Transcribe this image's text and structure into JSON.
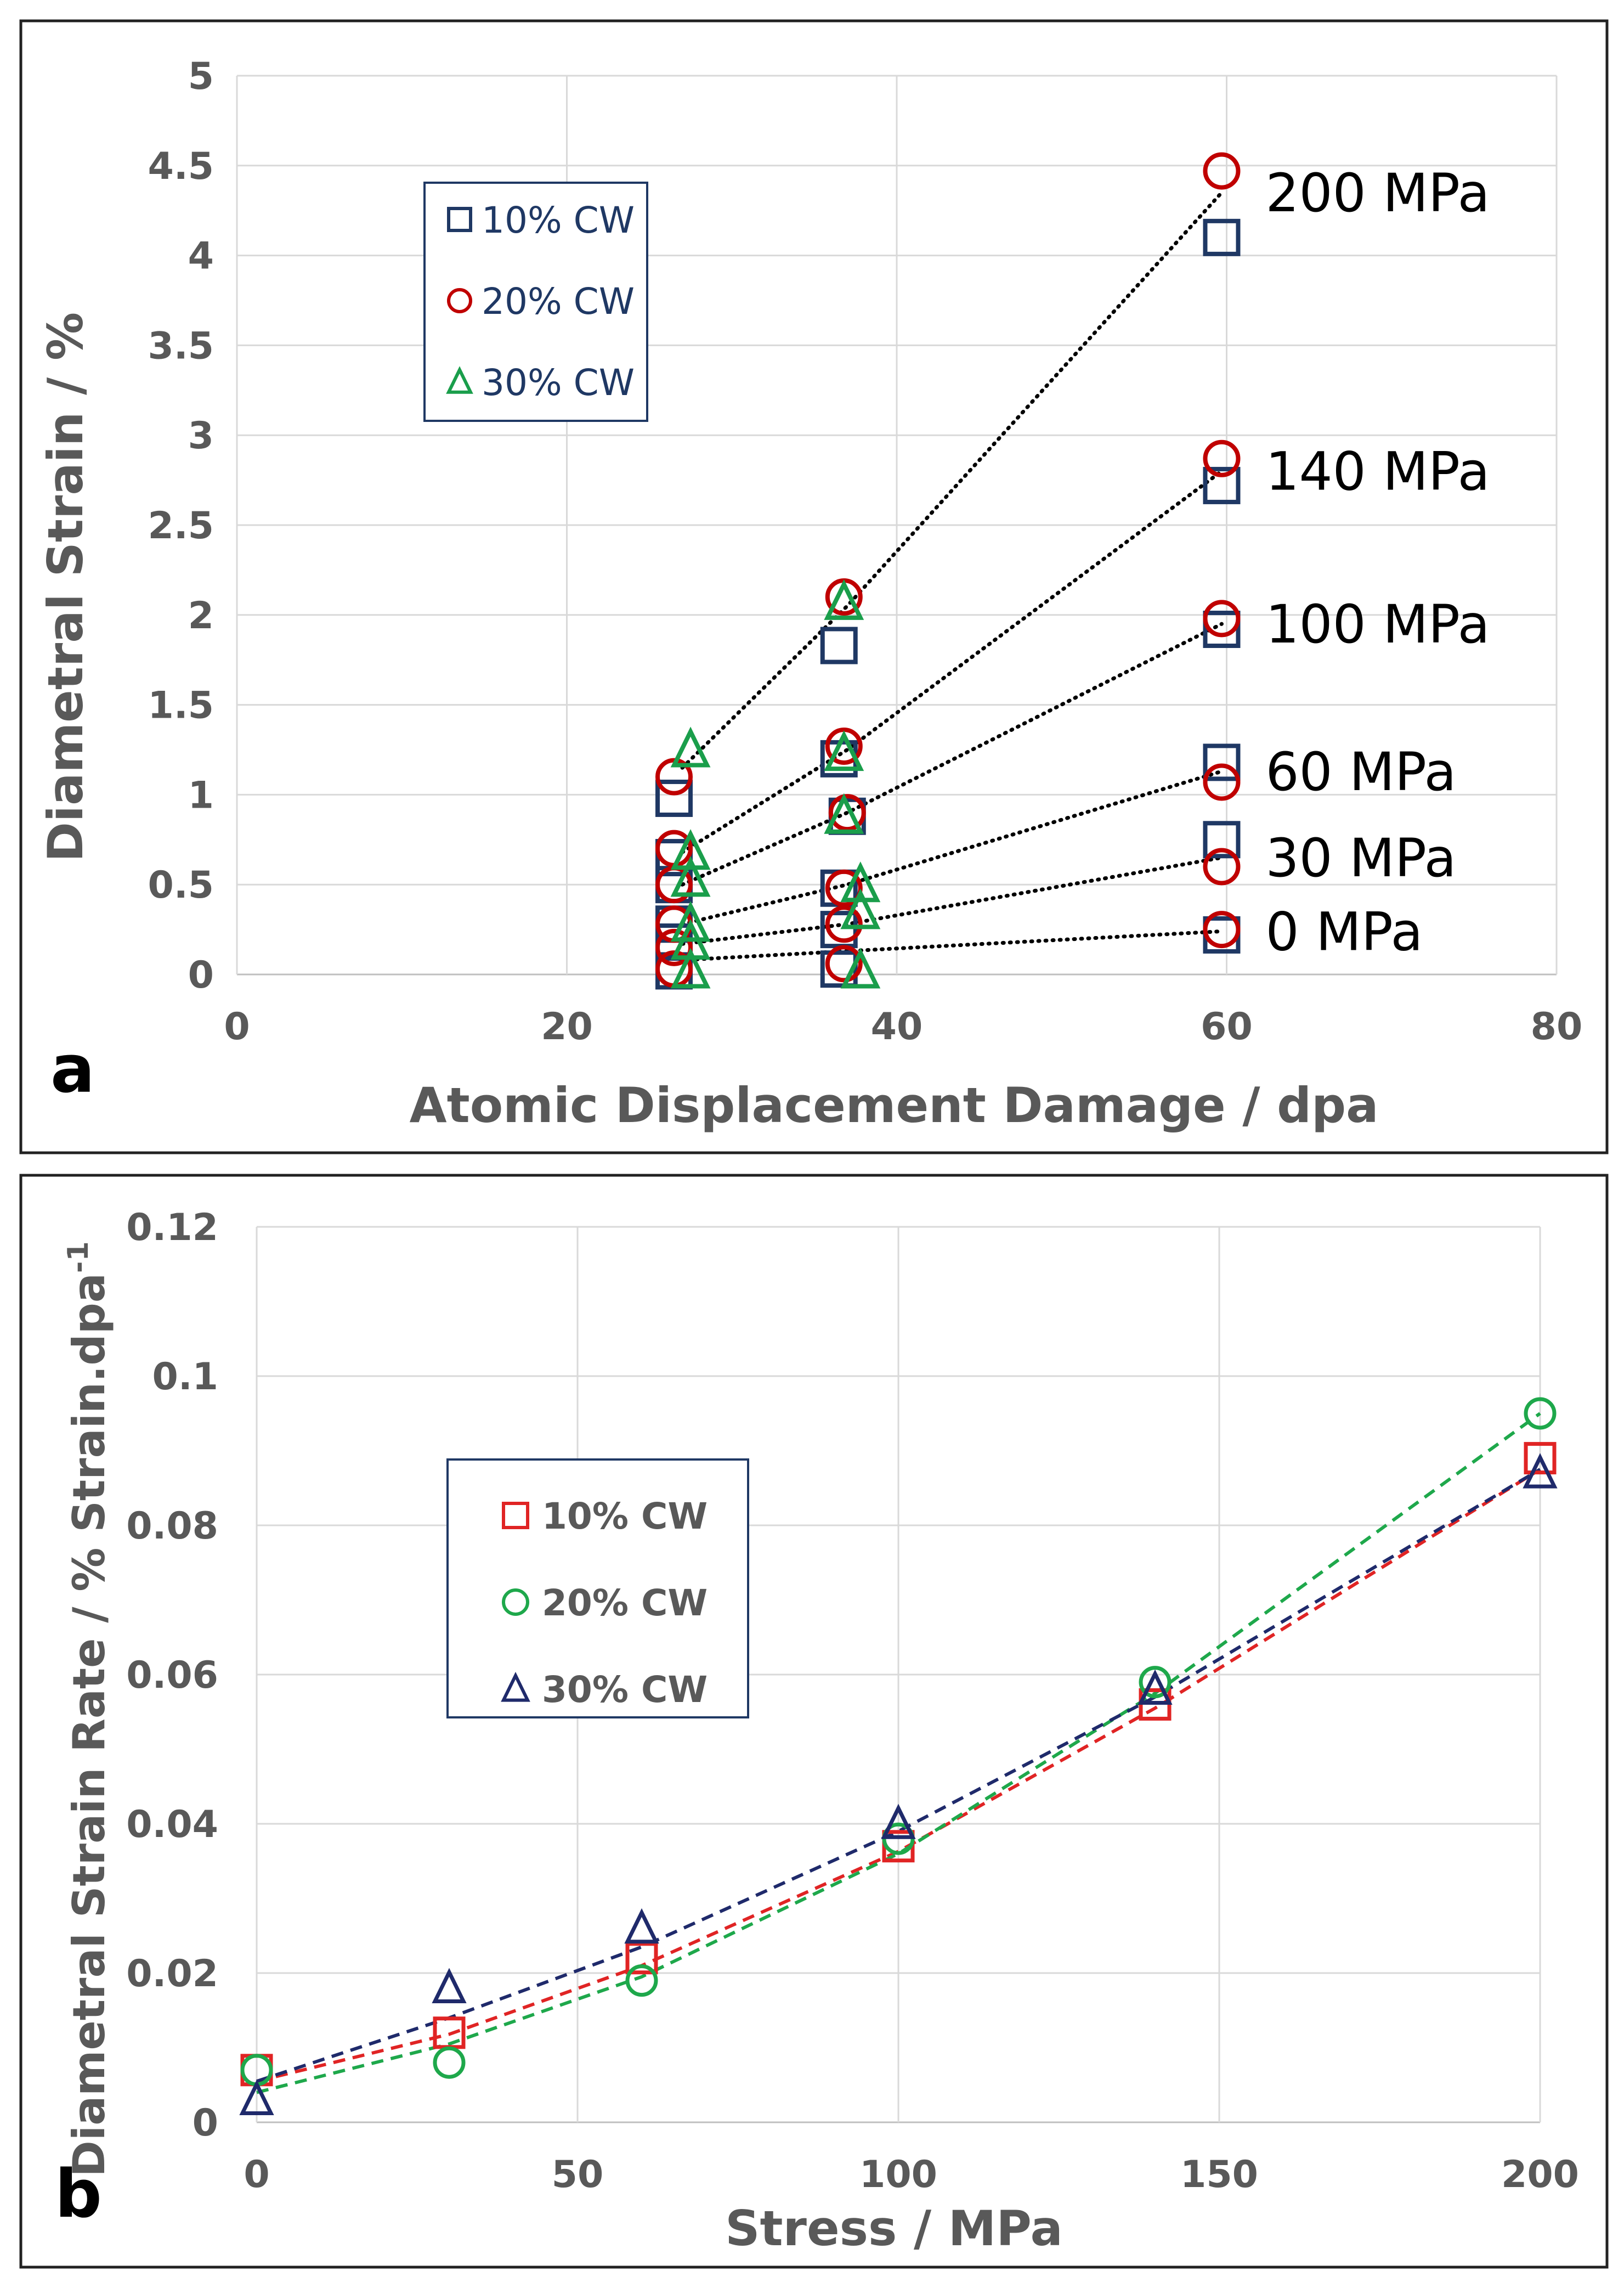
{
  "chart_data": [
    {
      "id": "a",
      "type": "scatter",
      "panel_label": "a",
      "xlabel": "Atomic Displacement Damage / dpa",
      "ylabel": "Diametral Strain / %",
      "xlim": [
        0,
        80
      ],
      "ylim": [
        0,
        5
      ],
      "xticks": [
        "0",
        "20",
        "40",
        "60",
        "80"
      ],
      "yticks": [
        "0",
        "0.5",
        "1",
        "1.5",
        "2",
        "2.5",
        "3",
        "3.5",
        "4",
        "4.5",
        "5"
      ],
      "grid": true,
      "legend_position": "top-left",
      "series": [
        {
          "name": "10% CW",
          "marker": "square",
          "color": "#1f3864",
          "points": [
            [
              26.5,
              0.98
            ],
            [
              26.5,
              0.65
            ],
            [
              26.5,
              0.5
            ],
            [
              26.5,
              0.28
            ],
            [
              26.5,
              0.18
            ],
            [
              26.5,
              0.02
            ],
            [
              36.5,
              1.83
            ],
            [
              36.5,
              1.2
            ],
            [
              37,
              0.88
            ],
            [
              36.5,
              0.48
            ],
            [
              36.5,
              0.25
            ],
            [
              36.5,
              0.03
            ],
            [
              59.7,
              4.1
            ],
            [
              59.7,
              2.72
            ],
            [
              59.7,
              1.92
            ],
            [
              59.7,
              1.18
            ],
            [
              59.7,
              0.75
            ],
            [
              59.7,
              0.22
            ]
          ]
        },
        {
          "name": "20% CW",
          "marker": "circle",
          "color": "#c00000",
          "points": [
            [
              26.5,
              1.1
            ],
            [
              26.5,
              0.7
            ],
            [
              26.5,
              0.5
            ],
            [
              26.5,
              0.28
            ],
            [
              26.5,
              0.15
            ],
            [
              26.5,
              0.03
            ],
            [
              36.8,
              2.1
            ],
            [
              36.8,
              1.27
            ],
            [
              37,
              0.9
            ],
            [
              36.8,
              0.48
            ],
            [
              36.8,
              0.28
            ],
            [
              36.8,
              0.06
            ],
            [
              59.7,
              4.47
            ],
            [
              59.7,
              2.87
            ],
            [
              59.7,
              1.98
            ],
            [
              59.7,
              1.07
            ],
            [
              59.7,
              0.6
            ],
            [
              59.7,
              0.25
            ]
          ]
        },
        {
          "name": "30% CW",
          "marker": "triangle",
          "color": "#1a9e4b",
          "points": [
            [
              27.5,
              1.25
            ],
            [
              27.5,
              0.68
            ],
            [
              27.5,
              0.53
            ],
            [
              27.5,
              0.28
            ],
            [
              27.5,
              0.18
            ],
            [
              27.5,
              0.02
            ],
            [
              36.8,
              2.07
            ],
            [
              36.8,
              1.23
            ],
            [
              36.8,
              0.88
            ],
            [
              37.8,
              0.5
            ],
            [
              37.8,
              0.35
            ],
            [
              37.8,
              0.02
            ]
          ]
        }
      ],
      "trend_lines": [
        {
          "label": "200 MPa",
          "points": [
            [
              27,
              1.15
            ],
            [
              37,
              2.05
            ],
            [
              59.7,
              4.35
            ]
          ]
        },
        {
          "label": "140 MPa",
          "points": [
            [
              27,
              0.68
            ],
            [
              37,
              1.25
            ],
            [
              59.7,
              2.8
            ]
          ]
        },
        {
          "label": "100 MPa",
          "points": [
            [
              27,
              0.5
            ],
            [
              37,
              0.9
            ],
            [
              59.7,
              1.95
            ]
          ]
        },
        {
          "label": "60 MPa",
          "points": [
            [
              27,
              0.28
            ],
            [
              37,
              0.5
            ],
            [
              59.7,
              1.13
            ]
          ]
        },
        {
          "label": "30 MPa",
          "points": [
            [
              27,
              0.17
            ],
            [
              37,
              0.28
            ],
            [
              59.7,
              0.65
            ]
          ]
        },
        {
          "label": "0 MPa",
          "points": [
            [
              27,
              0.08
            ],
            [
              37,
              0.13
            ],
            [
              59.7,
              0.24
            ]
          ]
        }
      ]
    },
    {
      "id": "b",
      "type": "line",
      "panel_label": "b",
      "xlabel": "Stress / MPa",
      "ylabel": "Diametral Strain Rate / % Strain.dpa",
      "ylabel_superscript": "-1",
      "xlim": [
        0,
        200
      ],
      "ylim": [
        0,
        0.12
      ],
      "xticks": [
        "0",
        "50",
        "100",
        "150",
        "200"
      ],
      "yticks": [
        "0",
        "0.02",
        "0.04",
        "0.06",
        "0.08",
        "0.1",
        "0.12"
      ],
      "grid": true,
      "legend_position": "upper-left",
      "x": [
        0,
        30,
        60,
        100,
        140,
        200
      ],
      "series": [
        {
          "name": "10% CW",
          "marker": "square",
          "color": "#e02424",
          "values": [
            0.007,
            0.012,
            0.022,
            0.037,
            0.056,
            0.089
          ],
          "fit": [
            0.0055,
            0.0118,
            0.021,
            0.0363,
            0.0555,
            0.0875
          ]
        },
        {
          "name": "20% CW",
          "marker": "circle",
          "color": "#1ea84b",
          "values": [
            0.007,
            0.008,
            0.019,
            0.038,
            0.059,
            0.095
          ],
          "fit": [
            0.004,
            0.0105,
            0.0195,
            0.036,
            0.0575,
            0.095
          ]
        },
        {
          "name": "30% CW",
          "marker": "triangle",
          "color": "#1f2a6b",
          "values": [
            0.003,
            0.018,
            0.026,
            0.04,
            0.058,
            0.087
          ],
          "fit": [
            0.0055,
            0.014,
            0.0235,
            0.039,
            0.057,
            0.0875
          ]
        }
      ]
    }
  ]
}
